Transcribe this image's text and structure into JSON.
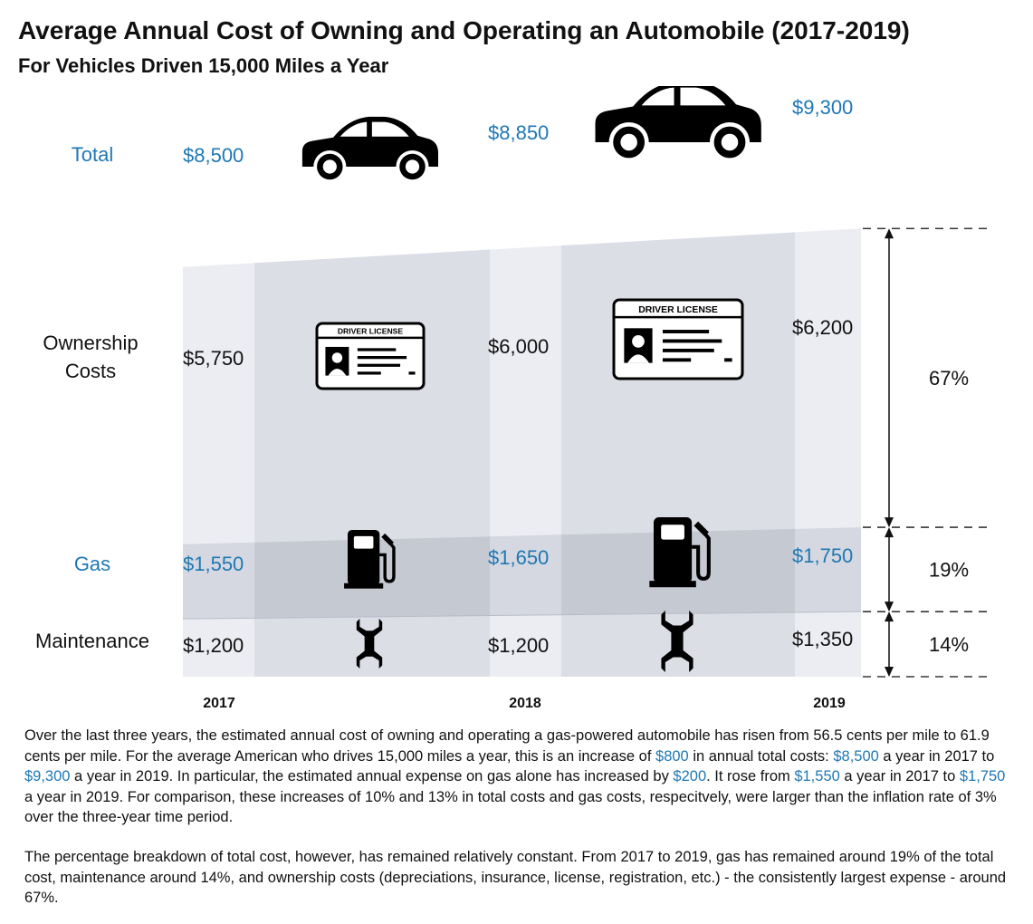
{
  "title": "Average Annual Cost of Owning and Operating an Automobile (2017-2019)",
  "subtitle": "For Vehicles Driven 15,000 Miles a Year",
  "chart_data": {
    "type": "area",
    "x": [
      "2017",
      "2018",
      "2019"
    ],
    "row_labels": {
      "total": "Total",
      "ownership": "Ownership Costs",
      "gas": "Gas",
      "maintenance": "Maintenance"
    },
    "total": {
      "values": [
        8500,
        8850,
        9300
      ],
      "labels": [
        "$8,500",
        "$8,850",
        "$9,300"
      ]
    },
    "series": [
      {
        "name": "Ownership Costs",
        "values": [
          5750,
          6000,
          6200
        ],
        "labels": [
          "$5,750",
          "$6,000",
          "$6,200"
        ],
        "share": "67%"
      },
      {
        "name": "Gas",
        "values": [
          1550,
          1650,
          1750
        ],
        "labels": [
          "$1,550",
          "$1,650",
          "$1,750"
        ],
        "share": "19%"
      },
      {
        "name": "Maintenance",
        "values": [
          1200,
          1200,
          1350
        ],
        "labels": [
          "$1,200",
          "$1,200",
          "$1,350"
        ],
        "share": "14%"
      }
    ],
    "license_text": "DRIVER LICENSE",
    "icons": [
      "car-icon",
      "driver-license-icon",
      "gas-pump-icon",
      "wrench-icon"
    ],
    "colors": {
      "highlight": "#1f78b4",
      "band": "#dcdee6",
      "gas_band": "#c5c9d2"
    }
  },
  "paragraphs": {
    "p1": [
      {
        "t": "Over the last three years, the estimated annual cost of owning and operating a gas-powered automobile has risen from 56.5 cents per mile to 61.9 cents per mile. For the average American who drives 15,000 miles a year, this is an increase of "
      },
      {
        "t": "$800",
        "hl": true
      },
      {
        "t": " in annual total costs: "
      },
      {
        "t": "$8,500",
        "hl": true
      },
      {
        "t": " a year in 2017 to "
      },
      {
        "t": "$9,300",
        "hl": true
      },
      {
        "t": " a year in 2019. In particular, the estimated annual expense on gas alone has increased by "
      },
      {
        "t": "$200",
        "hl": true
      },
      {
        "t": ". It rose from "
      },
      {
        "t": "$1,550",
        "hl": true
      },
      {
        "t": " a year in 2017 to "
      },
      {
        "t": "$1,750",
        "hl": true
      },
      {
        "t": " a year in 2019. For comparison, these increases of 10% and 13% in total costs and gas costs, respecitvely, were larger than the inflation rate of 3% over the three-year time period."
      }
    ],
    "p2": [
      {
        "t": "The percentage breakdown of total cost, however, has remained relatively constant. From 2017 to 2019, gas has remained around 19% of the total cost, maintenance around 14%, and ownership costs (depreciations, insurance, license, registration, etc.) - the consistently largest expense - around 67%."
      }
    ]
  }
}
